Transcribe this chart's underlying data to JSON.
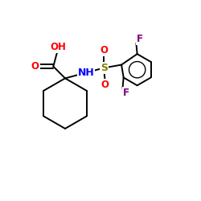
{
  "background": "#ffffff",
  "colors": {
    "C": "#000000",
    "O": "#ff0000",
    "N": "#0000ff",
    "S": "#808000",
    "F": "#800080"
  },
  "lw": 1.4,
  "fs": 8.5
}
